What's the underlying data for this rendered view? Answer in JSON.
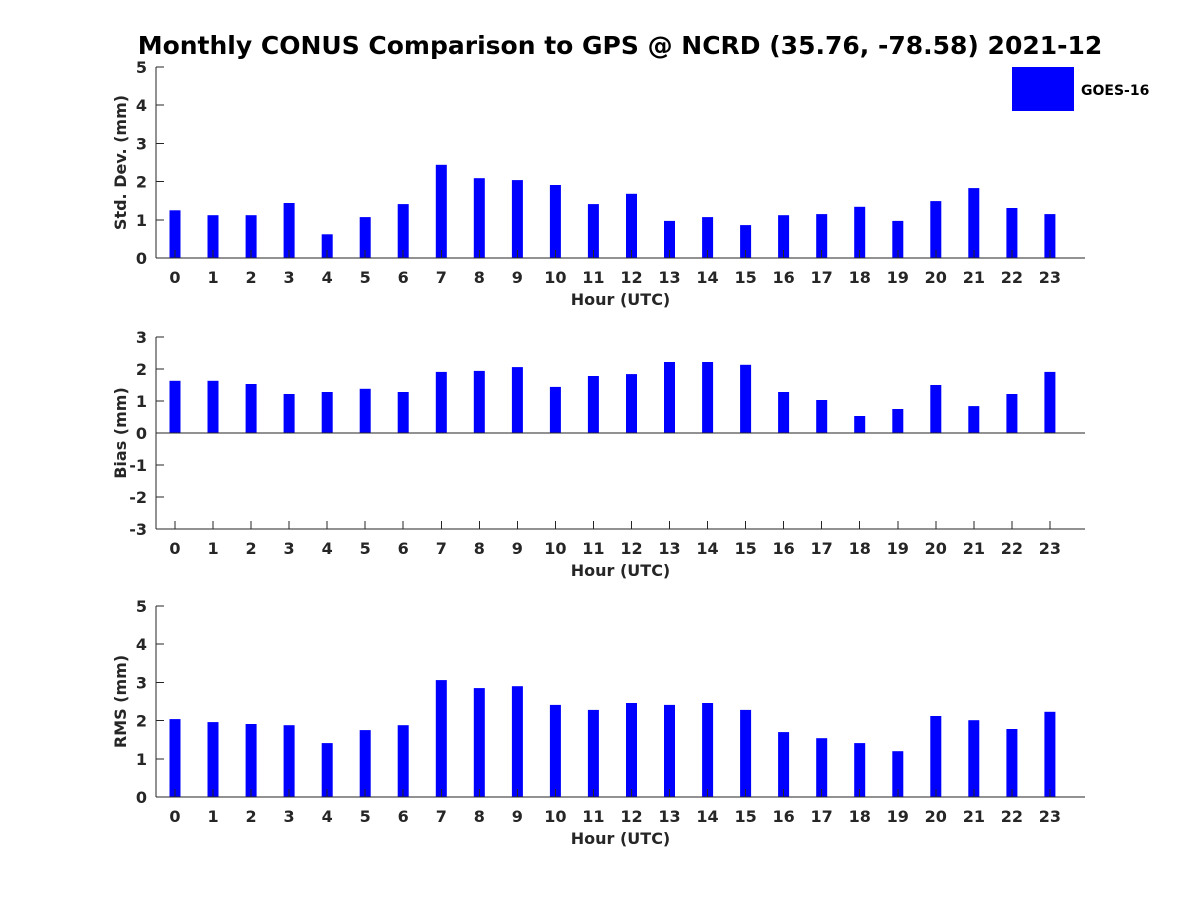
{
  "figure": {
    "title": "Monthly CONUS Comparison to GPS @ NCRD (35.76, -78.58) 2021-12",
    "bar_color": "#0000ff",
    "legend": {
      "label": "GOES-16",
      "placement": "top-right"
    }
  },
  "chart_data": [
    {
      "type": "bar",
      "title": "",
      "xlabel": "Hour (UTC)",
      "ylabel": "Std. Dev. (mm)",
      "ylim": [
        0,
        5
      ],
      "yticks": [
        0,
        1,
        2,
        3,
        4,
        5
      ],
      "categories": [
        "0",
        "1",
        "2",
        "3",
        "4",
        "5",
        "6",
        "7",
        "8",
        "9",
        "10",
        "11",
        "12",
        "13",
        "14",
        "15",
        "16",
        "17",
        "18",
        "19",
        "20",
        "21",
        "22",
        "23"
      ],
      "series": [
        {
          "name": "GOES-16",
          "color": "#0000ff",
          "values": [
            1.25,
            1.12,
            1.12,
            1.44,
            0.62,
            1.07,
            1.41,
            2.44,
            2.09,
            2.04,
            1.91,
            1.41,
            1.68,
            0.97,
            1.07,
            0.86,
            1.12,
            1.15,
            1.34,
            0.97,
            1.49,
            1.83,
            1.31,
            1.15
          ]
        }
      ]
    },
    {
      "type": "bar",
      "title": "",
      "xlabel": "Hour (UTC)",
      "ylabel": "Bias (mm)",
      "ylim": [
        -3,
        3
      ],
      "yticks": [
        -3,
        -2,
        -1,
        0,
        1,
        2,
        3
      ],
      "categories": [
        "0",
        "1",
        "2",
        "3",
        "4",
        "5",
        "6",
        "7",
        "8",
        "9",
        "10",
        "11",
        "12",
        "13",
        "14",
        "15",
        "16",
        "17",
        "18",
        "19",
        "20",
        "21",
        "22",
        "23"
      ],
      "series": [
        {
          "name": "GOES-16",
          "color": "#0000ff",
          "values": [
            1.63,
            1.63,
            1.53,
            1.22,
            1.28,
            1.38,
            1.28,
            1.91,
            1.94,
            2.06,
            1.44,
            1.78,
            1.84,
            2.22,
            2.22,
            2.13,
            1.28,
            1.03,
            0.53,
            0.75,
            1.5,
            0.84,
            1.22,
            1.91
          ]
        }
      ]
    },
    {
      "type": "bar",
      "title": "",
      "xlabel": "Hour (UTC)",
      "ylabel": "RMS (mm)",
      "ylim": [
        0,
        5
      ],
      "yticks": [
        0,
        1,
        2,
        3,
        4,
        5
      ],
      "categories": [
        "0",
        "1",
        "2",
        "3",
        "4",
        "5",
        "6",
        "7",
        "8",
        "9",
        "10",
        "11",
        "12",
        "13",
        "14",
        "15",
        "16",
        "17",
        "18",
        "19",
        "20",
        "21",
        "22",
        "23"
      ],
      "series": [
        {
          "name": "GOES-16",
          "color": "#0000ff",
          "values": [
            2.04,
            1.96,
            1.91,
            1.88,
            1.41,
            1.75,
            1.88,
            3.06,
            2.85,
            2.9,
            2.41,
            2.28,
            2.46,
            2.41,
            2.46,
            2.28,
            1.7,
            1.54,
            1.41,
            1.2,
            2.12,
            2.01,
            1.78,
            2.23
          ]
        }
      ]
    }
  ]
}
